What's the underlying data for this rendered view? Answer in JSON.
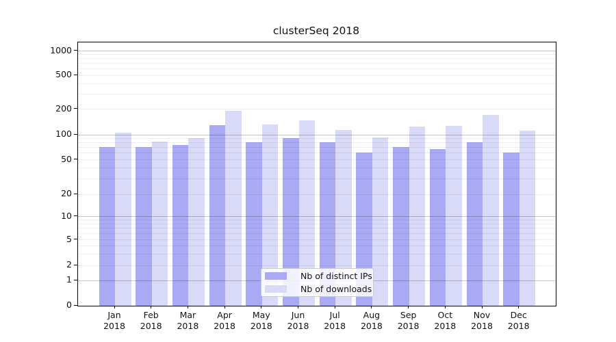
{
  "chart_data": {
    "type": "bar",
    "title": "clusterSeq 2018",
    "categories": [
      "Jan 2018",
      "Feb 2018",
      "Mar 2018",
      "Apr 2018",
      "May 2018",
      "Jun 2018",
      "Jul 2018",
      "Aug 2018",
      "Sep 2018",
      "Oct 2018",
      "Nov 2018",
      "Dec 2018"
    ],
    "series": [
      {
        "name": "Nb of distinct IPs",
        "color": "#a9a9f4",
        "values": [
          70,
          70,
          74,
          128,
          81,
          90,
          80,
          60,
          71,
          66,
          80,
          60
        ]
      },
      {
        "name": "Nb of downloads",
        "color": "#d9d9f8",
        "values": [
          105,
          82,
          90,
          190,
          132,
          146,
          113,
          92,
          123,
          125,
          168,
          110
        ]
      }
    ],
    "xlabel": "",
    "ylabel": "",
    "y_ticks": [
      0,
      1,
      2,
      5,
      10,
      20,
      50,
      100,
      200,
      500,
      1000
    ],
    "y_scale": "symlog",
    "ylim": [
      0,
      1000
    ],
    "grid": true,
    "legend_position": "lower center",
    "colors": {
      "distinct_ips_bar": "#a9a9f4",
      "downloads_bar": "#d9d9f8",
      "major_gridline": "#c4c4c4",
      "minor_gridline": "#ededed"
    }
  }
}
